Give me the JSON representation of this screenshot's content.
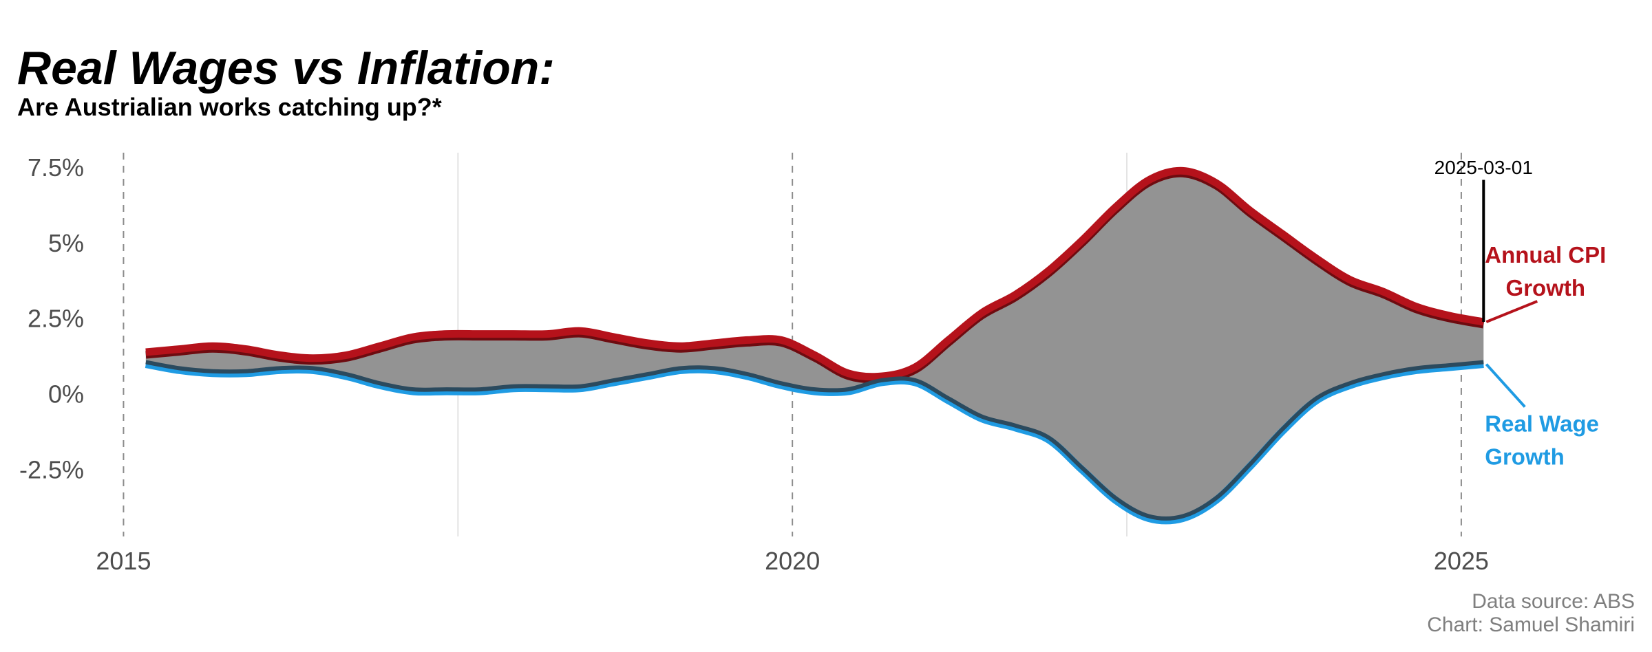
{
  "title": "Real Wages vs Inflation:",
  "subtitle": "Are Austrialian works catching up?*",
  "caption": {
    "line1": "Data source: ABS",
    "line2": "Chart: Samuel Shamiri"
  },
  "colors": {
    "cpi": "#b5121b",
    "cpi_dark": "#6e0b10",
    "wage": "#1f9be3",
    "wage_dark": "#2b4a5e",
    "gap_fill": "#939393",
    "grid": "#e3e3e3",
    "dashed": "#8c8c8c",
    "axis_text": "#4d4d4d"
  },
  "chart_data": {
    "type": "area",
    "title": "Real Wages vs Inflation:",
    "subtitle": "Are Austrialian works catching up?*",
    "xlabel": "",
    "ylabel": "",
    "x_ticks": [
      2015,
      2020,
      2025
    ],
    "x_tick_labels": [
      "2015",
      "2020",
      "2025"
    ],
    "y_ticks": [
      -2.5,
      0,
      2.5,
      5,
      7.5
    ],
    "y_tick_labels": [
      "-2.5%",
      "0%",
      "2.5%",
      "5%",
      "7.5%"
    ],
    "xlim": [
      2014.9,
      2026.4
    ],
    "ylim": [
      -4.7,
      8.0
    ],
    "grid": "vertical",
    "x": [
      "2015-03-01",
      "2015-06-01",
      "2015-09-01",
      "2015-12-01",
      "2016-03-01",
      "2016-06-01",
      "2016-09-01",
      "2016-12-01",
      "2017-03-01",
      "2017-06-01",
      "2017-09-01",
      "2017-12-01",
      "2018-03-01",
      "2018-06-01",
      "2018-09-01",
      "2018-12-01",
      "2019-03-01",
      "2019-06-01",
      "2019-09-01",
      "2019-12-01",
      "2020-03-01",
      "2020-06-01",
      "2020-09-01",
      "2020-12-01",
      "2021-03-01",
      "2021-06-01",
      "2021-09-01",
      "2021-12-01",
      "2022-03-01",
      "2022-06-01",
      "2022-09-01",
      "2022-12-01",
      "2023-03-01",
      "2023-06-01",
      "2023-09-01",
      "2023-12-01",
      "2024-03-01",
      "2024-06-01",
      "2024-09-01",
      "2024-12-01",
      "2025-03-01"
    ],
    "series": [
      {
        "name": "Annual CPI Growth",
        "values": [
          1.4,
          1.5,
          1.6,
          1.5,
          1.3,
          1.2,
          1.3,
          1.6,
          1.9,
          2.0,
          2.0,
          2.0,
          2.0,
          2.1,
          1.9,
          1.7,
          1.6,
          1.7,
          1.8,
          1.8,
          1.3,
          0.7,
          0.6,
          0.9,
          1.8,
          2.7,
          3.3,
          4.1,
          5.1,
          6.2,
          7.1,
          7.4,
          7.0,
          6.1,
          5.3,
          4.5,
          3.8,
          3.4,
          2.9,
          2.6,
          2.4
        ]
      },
      {
        "name": "Real Wage Growth",
        "values": [
          1.0,
          0.8,
          0.7,
          0.7,
          0.8,
          0.8,
          0.6,
          0.3,
          0.1,
          0.1,
          0.1,
          0.2,
          0.2,
          0.2,
          0.4,
          0.6,
          0.8,
          0.8,
          0.6,
          0.3,
          0.1,
          0.1,
          0.4,
          0.4,
          -0.2,
          -0.8,
          -1.1,
          -1.5,
          -2.5,
          -3.5,
          -4.1,
          -4.1,
          -3.5,
          -2.4,
          -1.2,
          -0.2,
          0.3,
          0.6,
          0.8,
          0.9,
          1.0
        ]
      }
    ],
    "annotations": {
      "marker_date": "2025-03-01",
      "cpi_label_line1": "Annual CPI",
      "cpi_label_line2": "Growth",
      "wage_label_line1": "Real Wage",
      "wage_label_line2": "Growth"
    }
  }
}
